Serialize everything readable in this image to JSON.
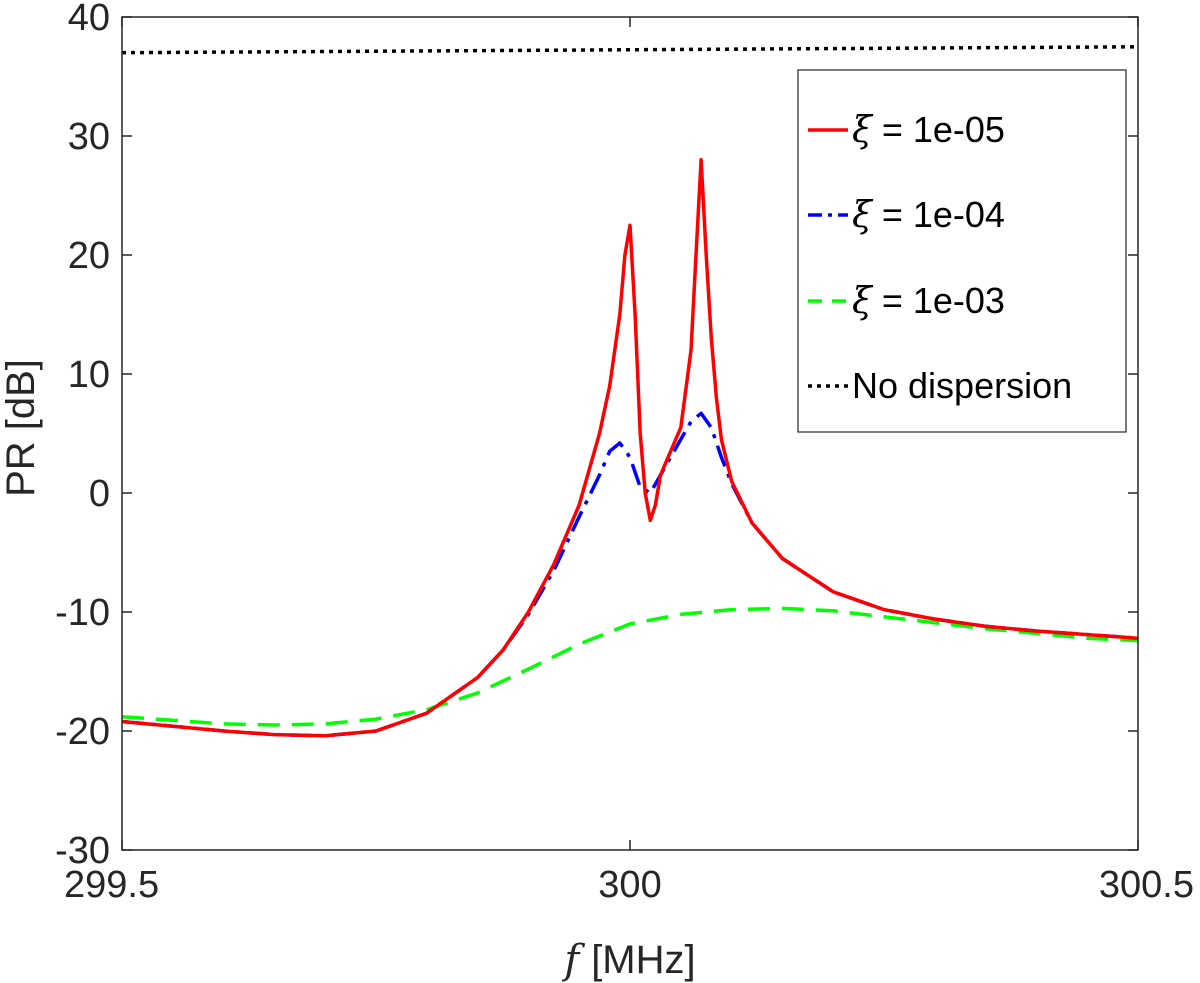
{
  "chart_data": {
    "type": "line",
    "title": "",
    "xlabel_symbol": "f",
    "xlabel_unit": "[MHz]",
    "ylabel": "PR [dB]",
    "xlim": [
      299.5,
      300.5
    ],
    "ylim": [
      -30,
      40
    ],
    "x_ticks": [
      299.5,
      300,
      300.5
    ],
    "x_tick_labels": [
      "299.5",
      "300",
      "300.5"
    ],
    "y_ticks": [
      -30,
      -20,
      -10,
      0,
      10,
      20,
      30,
      40
    ],
    "y_tick_labels": [
      "-30",
      "-20",
      "-10",
      "0",
      "10",
      "20",
      "30",
      "40"
    ],
    "grid": false,
    "legend_position": "top-right",
    "series": [
      {
        "name": "ξ = 1e-05",
        "name_symbol": "ξ",
        "name_rest": " = 1e-05",
        "color": "#ff0000",
        "style": "solid",
        "x": [
          299.5,
          299.55,
          299.6,
          299.65,
          299.7,
          299.75,
          299.8,
          299.85,
          299.875,
          299.9,
          299.925,
          299.95,
          299.97,
          299.98,
          299.99,
          299.995,
          300.0,
          300.005,
          300.01,
          300.015,
          300.02,
          300.025,
          300.03,
          300.04,
          300.05,
          300.06,
          300.065,
          300.07,
          300.075,
          300.08,
          300.085,
          300.09,
          300.1,
          300.12,
          300.15,
          300.2,
          300.25,
          300.3,
          300.35,
          300.4,
          300.45,
          300.5
        ],
        "y": [
          -19.2,
          -19.6,
          -20.0,
          -20.3,
          -20.4,
          -20.0,
          -18.5,
          -15.5,
          -13.2,
          -10.0,
          -6.0,
          -1.0,
          5.0,
          9.0,
          15.0,
          20.0,
          22.5,
          15.0,
          5.0,
          0.0,
          -2.3,
          -1.0,
          1.5,
          3.5,
          5.5,
          12.0,
          20.0,
          28.0,
          20.0,
          13.0,
          8.0,
          4.5,
          1.0,
          -2.5,
          -5.5,
          -8.3,
          -9.8,
          -10.6,
          -11.2,
          -11.6,
          -11.9,
          -12.2
        ]
      },
      {
        "name": "ξ = 1e-04",
        "name_symbol": "ξ",
        "name_rest": " = 1e-04",
        "color": "#0000ff",
        "style": "dashdot",
        "x": [
          299.5,
          299.55,
          299.6,
          299.65,
          299.7,
          299.75,
          299.8,
          299.85,
          299.875,
          299.9,
          299.925,
          299.95,
          299.97,
          299.98,
          299.99,
          300.0,
          300.01,
          300.02,
          300.03,
          300.04,
          300.05,
          300.06,
          300.07,
          300.08,
          300.09,
          300.1,
          300.12,
          300.15,
          300.2,
          300.25,
          300.3,
          300.35,
          300.4,
          300.45,
          300.5
        ],
        "y": [
          -19.2,
          -19.6,
          -20.0,
          -20.3,
          -20.4,
          -20.0,
          -18.5,
          -15.5,
          -13.2,
          -10.2,
          -6.5,
          -2.0,
          1.5,
          3.5,
          4.2,
          3.0,
          0.5,
          0.0,
          1.5,
          3.0,
          4.5,
          6.0,
          6.7,
          5.5,
          3.0,
          0.8,
          -2.5,
          -5.5,
          -8.3,
          -9.8,
          -10.6,
          -11.2,
          -11.6,
          -11.9,
          -12.2
        ]
      },
      {
        "name": "ξ = 1e-03",
        "name_symbol": "ξ",
        "name_rest": " = 1e-03",
        "color": "#00ff00",
        "style": "dashed",
        "x": [
          299.5,
          299.55,
          299.6,
          299.65,
          299.7,
          299.75,
          299.8,
          299.85,
          299.9,
          299.95,
          300.0,
          300.05,
          300.1,
          300.15,
          300.2,
          300.25,
          300.3,
          300.35,
          300.4,
          300.45,
          300.5
        ],
        "y": [
          -18.8,
          -19.1,
          -19.4,
          -19.5,
          -19.4,
          -19.0,
          -18.2,
          -16.8,
          -14.8,
          -12.7,
          -11.0,
          -10.2,
          -9.8,
          -9.7,
          -9.9,
          -10.4,
          -10.9,
          -11.4,
          -11.8,
          -12.2,
          -12.4
        ]
      },
      {
        "name": "No dispersion",
        "name_symbol": "",
        "name_rest": "No dispersion",
        "color": "#000000",
        "style": "dotted",
        "x": [
          299.5,
          300.5
        ],
        "y": [
          37.0,
          37.5
        ]
      }
    ]
  }
}
